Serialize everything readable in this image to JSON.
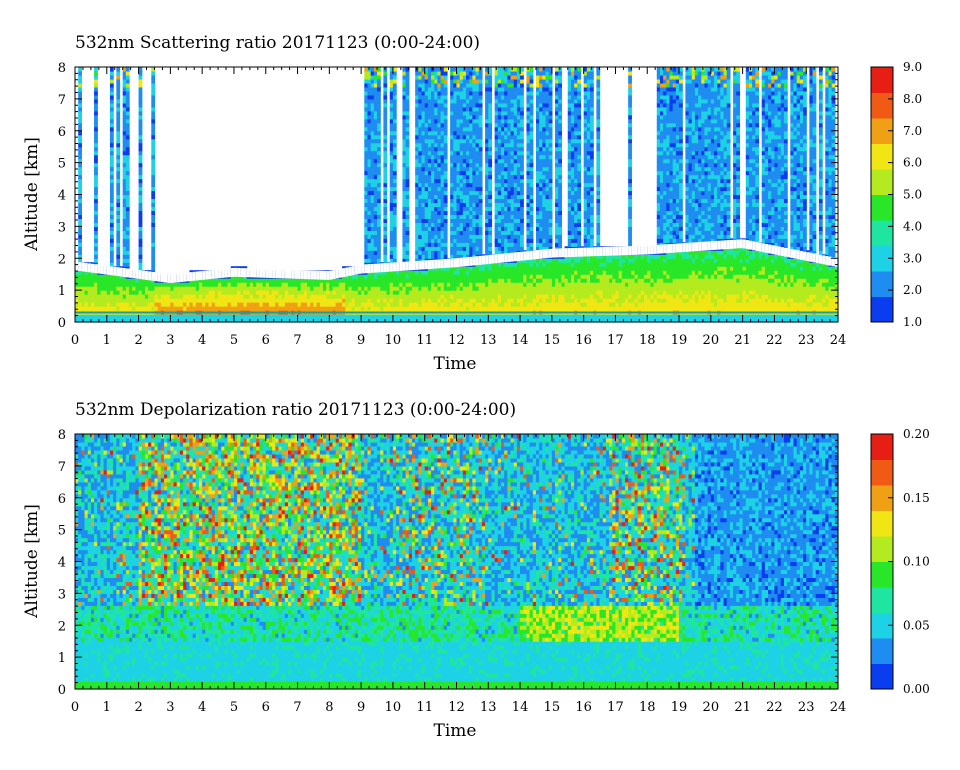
{
  "chart_data": [
    {
      "type": "heatmap",
      "title": "532nm Scattering ratio  20171123 (0:00-24:00)",
      "xlabel": "Time",
      "ylabel": "Altitude [km]",
      "xlim": [
        0,
        24
      ],
      "ylim": [
        0,
        8
      ],
      "x_ticks": [
        "0",
        "1",
        "2",
        "3",
        "4",
        "5",
        "6",
        "7",
        "8",
        "9",
        "10",
        "11",
        "12",
        "13",
        "14",
        "15",
        "16",
        "17",
        "18",
        "19",
        "20",
        "21",
        "22",
        "23",
        "24"
      ],
      "y_ticks": [
        "0",
        "1",
        "2",
        "3",
        "4",
        "5",
        "6",
        "7",
        "8"
      ],
      "colorbar": {
        "min": 1.0,
        "max": 9.0,
        "ticks": [
          "1.0",
          "2.0",
          "3.0",
          "4.0",
          "5.0",
          "6.0",
          "7.0",
          "8.0",
          "9.0"
        ],
        "colors": [
          "#0a3cf0",
          "#1e8cf0",
          "#1ed2e6",
          "#1ee6a0",
          "#28e628",
          "#b4eb1e",
          "#f0e614",
          "#f0a014",
          "#f05a14",
          "#e61e14"
        ]
      },
      "nodata_color": "#ffffff",
      "description_values": {
        "boundary_layer_top_km": [
          [
            0,
            1.9
          ],
          [
            3,
            1.5
          ],
          [
            5,
            1.7
          ],
          [
            8,
            1.6
          ],
          [
            9,
            1.8
          ],
          [
            12,
            2.0
          ],
          [
            15,
            2.3
          ],
          [
            18,
            2.4
          ],
          [
            21,
            2.6
          ],
          [
            24,
            2.0
          ]
        ],
        "peak_near_surface_ratio": 8.0
      }
    },
    {
      "type": "heatmap",
      "title": "532nm Depolarization ratio  20171123 (0:00-24:00)",
      "xlabel": "Time",
      "ylabel": "Altitude [km]",
      "xlim": [
        0,
        24
      ],
      "ylim": [
        0,
        8
      ],
      "x_ticks": [
        "0",
        "1",
        "2",
        "3",
        "4",
        "5",
        "6",
        "7",
        "8",
        "9",
        "10",
        "11",
        "12",
        "13",
        "14",
        "15",
        "16",
        "17",
        "18",
        "19",
        "20",
        "21",
        "22",
        "23",
        "24"
      ],
      "y_ticks": [
        "0",
        "1",
        "2",
        "3",
        "4",
        "5",
        "6",
        "7",
        "8"
      ],
      "colorbar": {
        "min": 0.0,
        "max": 0.2,
        "ticks": [
          "0.00",
          "0.05",
          "0.10",
          "0.15",
          "0.20"
        ],
        "colors": [
          "#0a3cf0",
          "#1e8cf0",
          "#1ed2e6",
          "#1ee6a0",
          "#28e628",
          "#b4eb1e",
          "#f0e614",
          "#f0a014",
          "#f05a14",
          "#e61e14"
        ]
      }
    }
  ]
}
